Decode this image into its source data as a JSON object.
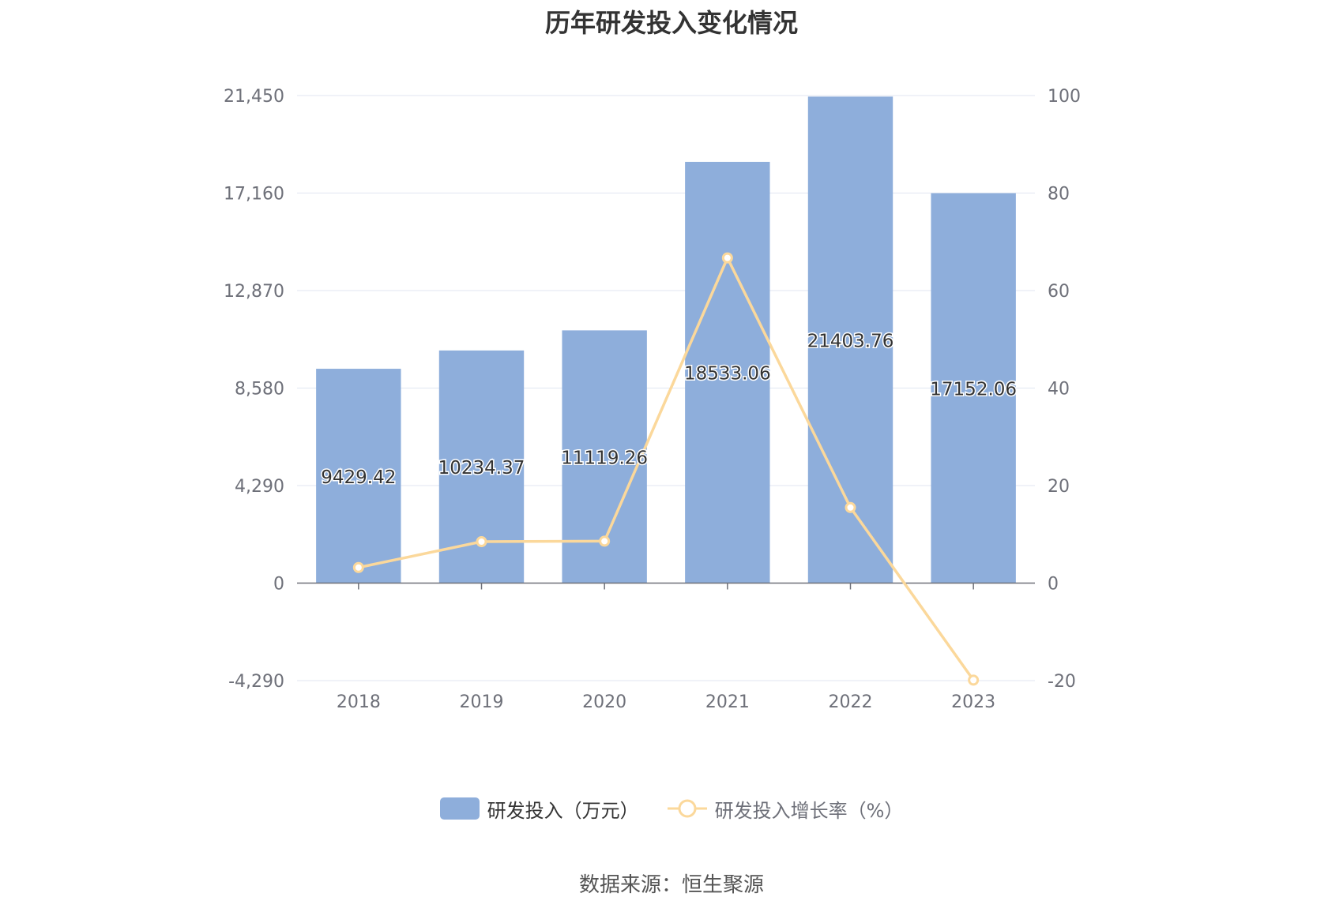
{
  "chart_data": {
    "type": "bar",
    "title": "历年研发投入变化情况",
    "categories": [
      "2018",
      "2019",
      "2020",
      "2021",
      "2022",
      "2023"
    ],
    "series": [
      {
        "name": "研发投入（万元）",
        "type": "bar",
        "axis": "left",
        "color": "#8eaedb",
        "values": [
          9429.42,
          10234.37,
          11119.26,
          18533.06,
          21403.76,
          17152.06
        ],
        "labels": [
          "9429.42",
          "10234.37",
          "11119.26",
          "18533.06",
          "21403.76",
          "17152.06"
        ]
      },
      {
        "name": "研发投入增长率（%）",
        "type": "line",
        "axis": "right",
        "color": "#fbd89b",
        "values": [
          3.2,
          8.5,
          8.6,
          66.7,
          15.5,
          -19.9
        ]
      }
    ],
    "y_left": {
      "range": [
        -4290,
        21450
      ],
      "ticks": [
        -4290,
        0,
        4290,
        8580,
        12870,
        17160,
        21450
      ],
      "tick_labels": [
        "-4,290",
        "0",
        "4,290",
        "8,580",
        "12,870",
        "17,160",
        "21,450"
      ]
    },
    "y_right": {
      "range": [
        -20,
        100
      ],
      "ticks": [
        -20,
        0,
        20,
        40,
        60,
        80,
        100
      ],
      "tick_labels": [
        "-20",
        "0",
        "20",
        "40",
        "60",
        "80",
        "100"
      ]
    },
    "grid": true,
    "legend_position": "bottom-center",
    "colors": {
      "grid": "#e0e6f1",
      "axis": "#6e7079",
      "text": "#6e7079"
    }
  },
  "legend": {
    "bar_label": "研发投入（万元）",
    "line_label": "研发投入增长率（%）"
  },
  "source": "数据来源：恒生聚源"
}
